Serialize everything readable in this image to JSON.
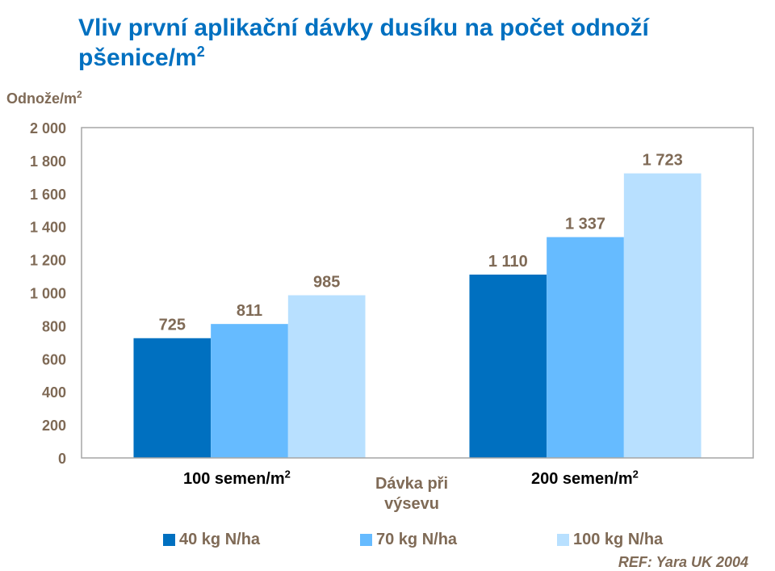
{
  "title": "Vliv první aplikační dávky dusíku na počet odnoží pšenice/m",
  "title_sup": "2",
  "ylabel": "Odnože/m",
  "ylabel_sup": "2",
  "xtitle": "Dávka při výsevu",
  "reference": "REF: Yara UK 2004",
  "categories": [
    {
      "label": "100 semen/m",
      "sup": "2"
    },
    {
      "label": "200 semen/m",
      "sup": "2"
    }
  ],
  "legend": [
    {
      "label": "40 kg N/ha",
      "color": "#0070C0"
    },
    {
      "label": "70 kg N/ha",
      "color": "#66BBFF"
    },
    {
      "label": "100 kg N/ha",
      "color": "#B8E0FF"
    }
  ],
  "chart_data": {
    "type": "bar",
    "categories": [
      "100 semen/m2",
      "200 semen/m2"
    ],
    "series": [
      {
        "name": "40 kg N/ha",
        "values": [
          725,
          1110
        ],
        "labels": [
          "725",
          "1 110"
        ]
      },
      {
        "name": "70 kg N/ha",
        "values": [
          811,
          1337
        ],
        "labels": [
          "811",
          "1 337"
        ]
      },
      {
        "name": "100 kg N/ha",
        "values": [
          985,
          1723
        ],
        "labels": [
          "985",
          "1 723"
        ]
      }
    ],
    "ylim": [
      0,
      2000
    ],
    "yticks": [
      0,
      200,
      400,
      600,
      800,
      1000,
      1200,
      1400,
      1600,
      1800,
      2000
    ],
    "ytick_labels": [
      "0",
      "200",
      "400",
      "600",
      "800",
      "1 000",
      "1 200",
      "1 400",
      "1 600",
      "1 800",
      "2 000"
    ],
    "grid": false,
    "legend_position": "bottom"
  }
}
